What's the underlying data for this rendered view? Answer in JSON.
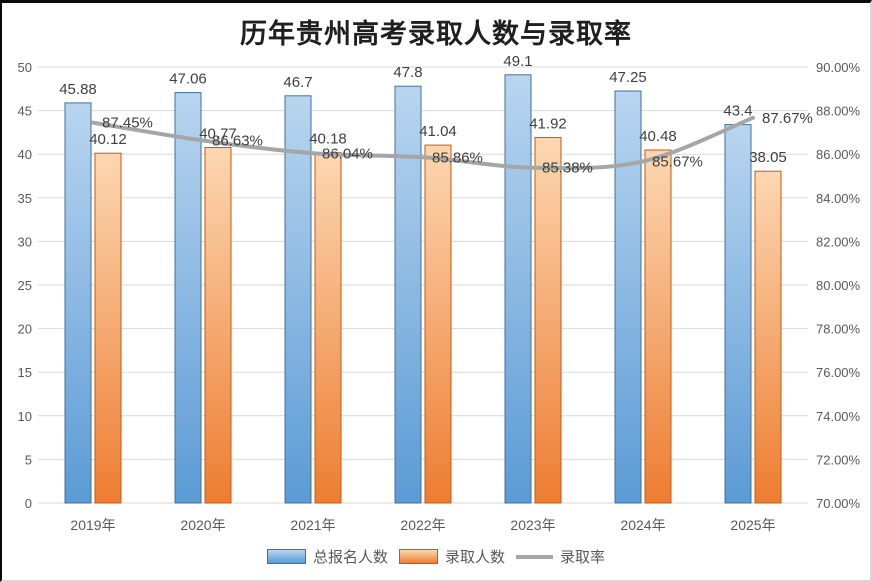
{
  "title": "历年贵州高考录取人数与录取率",
  "chart_data": {
    "type": "bar",
    "subtype": "combo-bar-line",
    "categories": [
      "2019年",
      "2020年",
      "2021年",
      "2022年",
      "2023年",
      "2024年",
      "2025年"
    ],
    "series": [
      {
        "name": "总报名人数",
        "kind": "bar",
        "axis": "left",
        "values": [
          45.88,
          47.06,
          46.7,
          47.8,
          49.1,
          47.25,
          43.4
        ],
        "labels": [
          "45.88",
          "47.06",
          "46.7",
          "47.8",
          "49.1",
          "47.25",
          "43.4"
        ],
        "fill_top": "#b9d5ef",
        "fill_bottom": "#5b9bd5",
        "border": "#41719c"
      },
      {
        "name": "录取人数",
        "kind": "bar",
        "axis": "left",
        "values": [
          40.12,
          40.77,
          40.18,
          41.04,
          41.92,
          40.48,
          38.05
        ],
        "labels": [
          "40.12",
          "40.77",
          "40.18",
          "41.04",
          "41.92",
          "40.48",
          "38.05"
        ],
        "fill_top": "#fcd7b2",
        "fill_bottom": "#ed7d31",
        "border": "#c55a11"
      },
      {
        "name": "录取率",
        "kind": "line",
        "axis": "right",
        "values": [
          87.45,
          86.63,
          86.04,
          85.86,
          85.38,
          85.67,
          87.67
        ],
        "labels": [
          "87.45%",
          "86.63%",
          "86.04%",
          "85.86%",
          "85.38%",
          "85.67%",
          "87.67%"
        ],
        "color": "#a6a6a6"
      }
    ],
    "left_axis": {
      "min": 0,
      "max": 50,
      "ticks": [
        "0",
        "5",
        "10",
        "15",
        "20",
        "25",
        "30",
        "35",
        "40",
        "45",
        "50"
      ]
    },
    "right_axis": {
      "min": 70,
      "max": 90,
      "ticks": [
        "70.00%",
        "72.00%",
        "74.00%",
        "76.00%",
        "78.00%",
        "80.00%",
        "82.00%",
        "84.00%",
        "86.00%",
        "88.00%",
        "90.00%"
      ]
    },
    "grid": true,
    "legend_position": "bottom",
    "colors": {
      "gridline": "#d9d9d9",
      "axis_text": "#595959",
      "label_text": "#404040",
      "title_text": "#1f1f1f"
    }
  }
}
